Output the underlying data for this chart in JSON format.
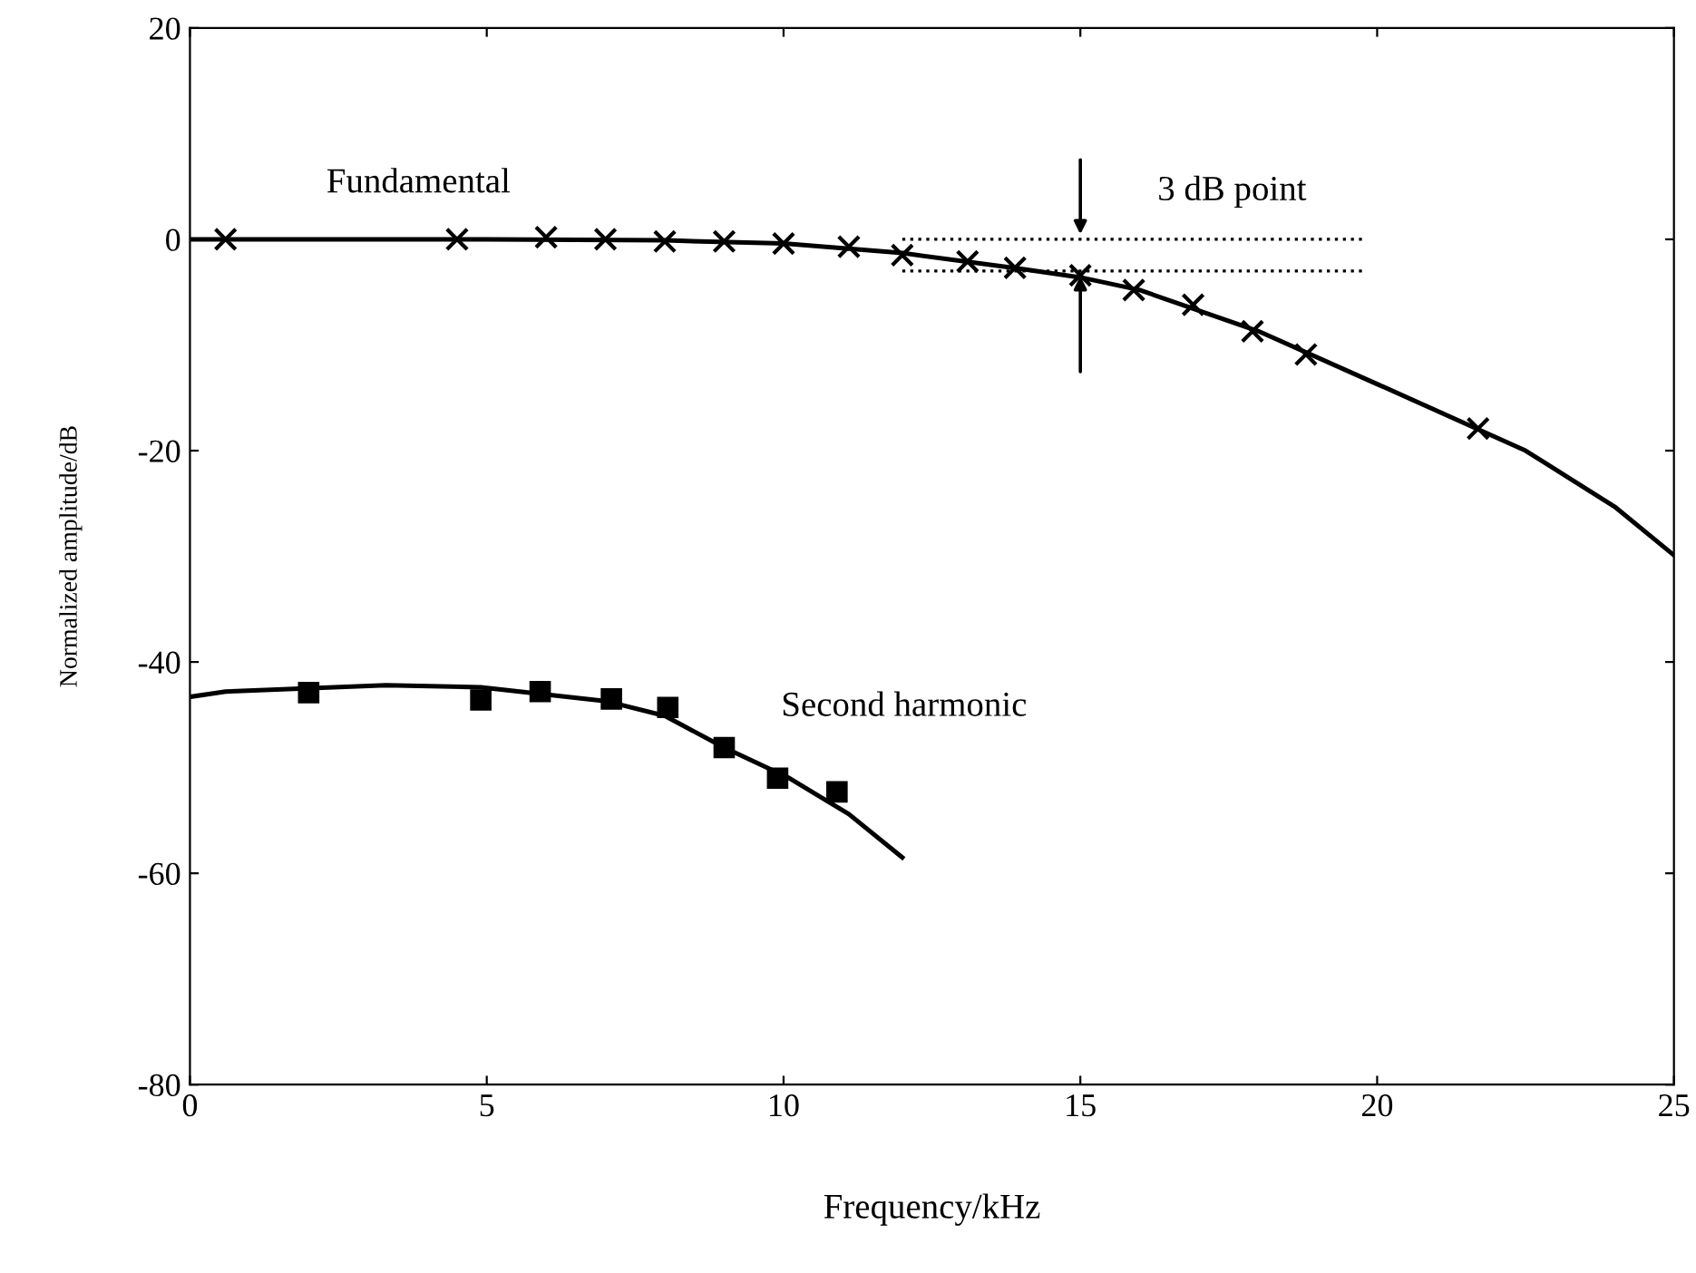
{
  "chart_data": {
    "type": "scatter",
    "xlabel": "Frequency/kHz",
    "ylabel": "Normalized amplitude/dB",
    "xlim": [
      0,
      25
    ],
    "ylim": [
      -80,
      20
    ],
    "xticks": [
      0,
      5,
      10,
      15,
      20,
      25
    ],
    "yticks": [
      -80,
      -60,
      -40,
      -20,
      0,
      20
    ],
    "grid": false,
    "series": [
      {
        "name": "Fundamental",
        "marker": "cross",
        "color": "#000000",
        "x": [
          0.6,
          4.5,
          6.0,
          7.0,
          8.0,
          9.0,
          10.0,
          11.1,
          12.0,
          13.1,
          13.9,
          15.0,
          15.9,
          16.9,
          17.9,
          18.8,
          21.7
        ],
        "values": [
          0,
          0,
          0.2,
          0,
          -0.2,
          -0.2,
          -0.4,
          -0.7,
          -1.5,
          -2.1,
          -2.7,
          -3.4,
          -4.8,
          -6.2,
          -8.7,
          -10.9,
          -17.9
        ]
      },
      {
        "type": "line",
        "color": "#000000",
        "line_style": "solid",
        "x": [
          0,
          5,
          8,
          10,
          12,
          14,
          15,
          16,
          18,
          20,
          22.5,
          24,
          25
        ],
        "values": [
          0,
          0,
          -0.1,
          -0.4,
          -1.3,
          -2.8,
          -3.6,
          -4.8,
          -8.7,
          -13.7,
          -20,
          -25.3,
          -29.9
        ]
      },
      {
        "name": "Second harmonic",
        "marker": "square",
        "color": "#000000",
        "x": [
          2.0,
          4.9,
          5.9,
          7.1,
          8.05,
          9.0,
          9.9,
          10.9
        ],
        "values": [
          -42.9,
          -43.6,
          -42.8,
          -43.5,
          -44.3,
          -48.1,
          -51.0,
          -52.3
        ]
      },
      {
        "type": "line",
        "color": "#000000",
        "line_style": "solid",
        "x": [
          0,
          0.6,
          3.3,
          4.9,
          7.0,
          8.0,
          9.0,
          10.1,
          11.1,
          12.0
        ],
        "values": [
          -43.3,
          -42.8,
          -42.2,
          -42.4,
          -43.7,
          -45.1,
          -48.1,
          -51.0,
          -54.4,
          -58.5
        ]
      }
    ],
    "ref_lines": [
      {
        "axis": "y",
        "value": 0,
        "line_style": "dotted",
        "color": "#000000"
      },
      {
        "axis": "y",
        "value": -3,
        "line_style": "dotted",
        "color": "#000000"
      }
    ],
    "annotations": [
      {
        "text": "3 dB point",
        "x": 15,
        "y": 0
      }
    ]
  }
}
